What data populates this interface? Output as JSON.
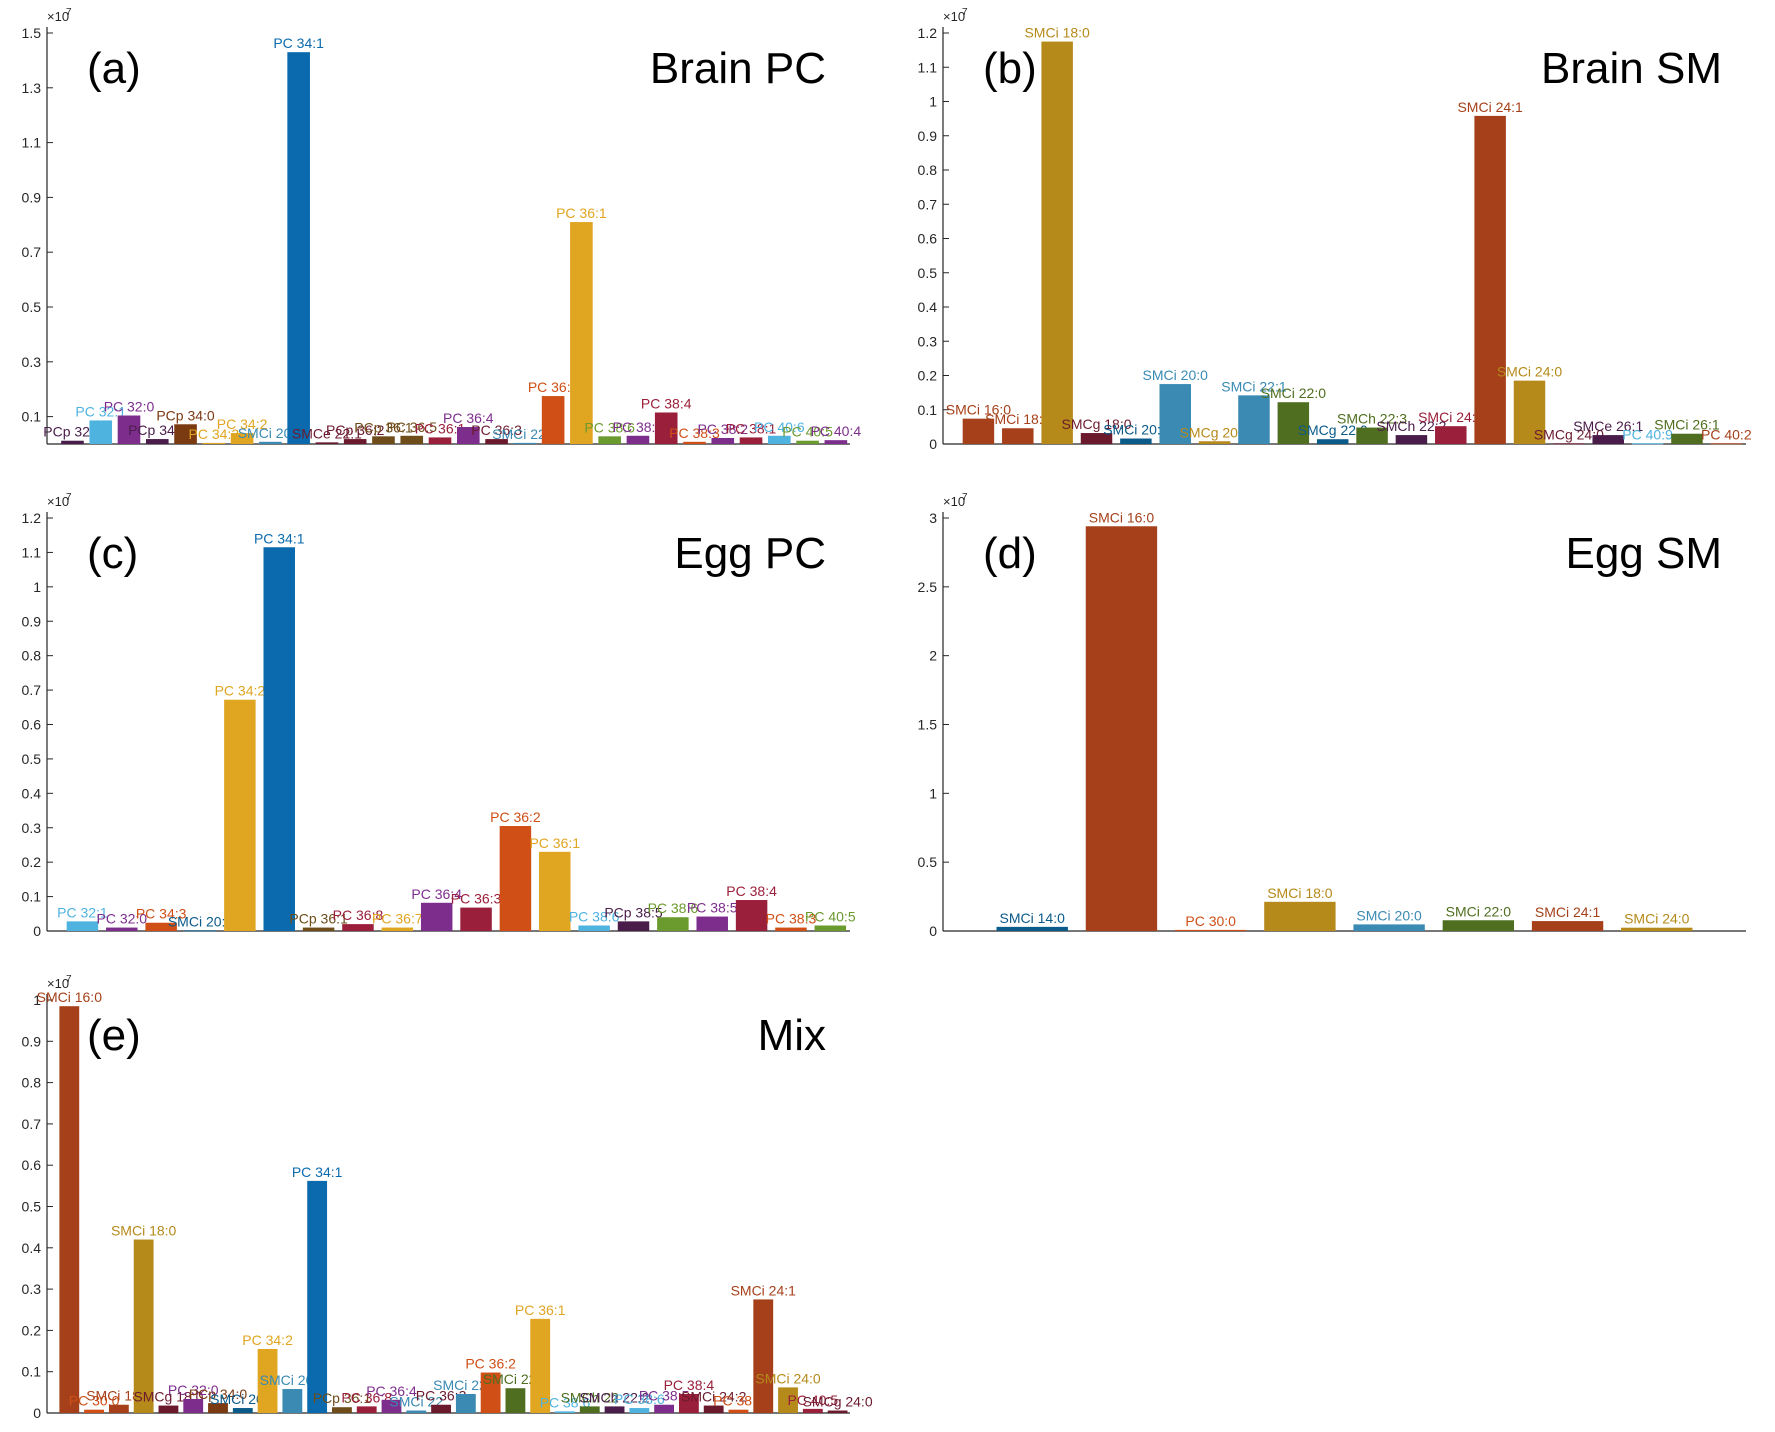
{
  "colors": {
    "dark_purple": "#4a1c4a",
    "light_blue": "#4fb3e0",
    "purple": "#7d2e8d",
    "brown": "#7a3a12",
    "orange_yellow": "#e0a521",
    "blue": "#0a6aad",
    "maroon": "#6b1a2e",
    "olive_brown": "#6e4d1a",
    "crimson": "#9a1f3a",
    "teal": "#3a8ab3",
    "orange_red": "#cf4f17",
    "green": "#6b9a2e",
    "rust": "#a5401a",
    "gold": "#b58a1a",
    "dark_green": "#4f6e1f",
    "navy": "#0a5a8a"
  },
  "chart_data": [
    {
      "type": "bar",
      "panel_label": "(a)",
      "title": "Brain PC",
      "exponent_base": "×10",
      "exponent": "7",
      "ylim": [
        0,
        1.5
      ],
      "yticks": [
        0.1,
        0.3,
        0.5,
        0.7,
        0.9,
        1.1,
        1.3,
        1.5
      ],
      "categories": [
        "PCp 32:0",
        "PC 32:1",
        "PC 32:0",
        "PCp 34:1",
        "PCp 34:0",
        "PC 34:3",
        "PC 34:2",
        "SMCi 20:1",
        "PC 34:1",
        "SMCe 22:1",
        "PCp 36:2",
        "PCp 36:1",
        "PC 36:5",
        "PC 36:1",
        "PC 36:4",
        "PC 36:3",
        "SMCi 22:1",
        "PC 36:2",
        "PC 36:1",
        "PC 38:6",
        "PC 38:5",
        "PC 38:4",
        "PC 38:3",
        "PC 38:2",
        "PC 38:1",
        "PC 40:6",
        "PC 40:5",
        "PC 40:4"
      ],
      "labels": [
        "PCp 32:0",
        "PC 32:1",
        "PC 32:0",
        "PCp 34:1",
        "PCp 34:0",
        "PC 34:3",
        "PC 34:2",
        "SMCi 20:1",
        "PC 34:1",
        "SMCe 22:1",
        "PCp 36:2",
        "PCp 36:1",
        "PC 36:5",
        "PC 36:1",
        "PC 36:4",
        "PC 36:3",
        "SMCi 22:1",
        "PC 36:2",
        "PC 36:1",
        "PC 38:6",
        "PC 38:5",
        "PC 38:4",
        "PC 38:3",
        "PC 38:2",
        "PC 38:1",
        "PC 40:6",
        "PC 40:5",
        "PC 40:4"
      ],
      "values": [
        0.012,
        0.086,
        0.104,
        0.018,
        0.072,
        0.004,
        0.04,
        0.008,
        1.43,
        0.006,
        0.018,
        0.028,
        0.03,
        0.024,
        0.062,
        0.018,
        0.004,
        0.175,
        0.81,
        0.028,
        0.03,
        0.115,
        0.008,
        0.022,
        0.024,
        0.03,
        0.012,
        0.014
      ],
      "color_keys": [
        "dark_purple",
        "light_blue",
        "purple",
        "dark_purple",
        "brown",
        "orange_yellow",
        "orange_yellow",
        "teal",
        "blue",
        "maroon",
        "maroon",
        "olive_brown",
        "olive_brown",
        "crimson",
        "purple",
        "maroon",
        "teal",
        "orange_red",
        "orange_yellow",
        "green",
        "purple",
        "crimson",
        "orange_red",
        "purple",
        "crimson",
        "light_blue",
        "green",
        "purple"
      ]
    },
    {
      "type": "bar",
      "panel_label": "(b)",
      "title": "Brain SM",
      "exponent_base": "×10",
      "exponent": "7",
      "ylim": [
        0,
        1.2
      ],
      "yticks": [
        0,
        0.1,
        0.2,
        0.3,
        0.4,
        0.5,
        0.6,
        0.7,
        0.8,
        0.9,
        1,
        1.1,
        1.2
      ],
      "categories": [
        "SMCi 16:0",
        "SMCi 18:1",
        "SMCi 18:0",
        "SMCg 18:0",
        "SMCi 20:1",
        "SMCi 20:0",
        "SMCg 20:0",
        "SMCi 22:1",
        "SMCi 22:0",
        "SMCg 22:0",
        "SMCh 22:3",
        "SMCh 22:2",
        "SMCi 24:2",
        "SMCi 24:1",
        "SMCi 24:0",
        "SMCg 24:0",
        "SMCe 26:1",
        "PC 40:9",
        "SMCi 26:1",
        "PC 40:2"
      ],
      "labels": [
        "SMCi 16:0",
        "SMCi 18:1",
        "SMCi 18:0",
        "SMCg 18:0",
        "SMCi 20:1",
        "SMCi 20:0",
        "SMCg 20:0",
        "SMCi 22:1",
        "SMCi 22:0",
        "SMCg 22:0",
        "SMCh 22:3",
        "SMCh 22:2",
        "SMCi 24:2",
        "SMCi 24:1",
        "SMCi 24:0",
        "SMCg 24:0",
        "SMCe 26:1",
        "PC 40:9",
        "SMCi 26:1",
        "PC 40:2"
      ],
      "values": [
        0.074,
        0.046,
        1.175,
        0.032,
        0.016,
        0.175,
        0.008,
        0.142,
        0.122,
        0.014,
        0.048,
        0.026,
        0.052,
        0.958,
        0.185,
        0.002,
        0.026,
        0.002,
        0.03,
        0.002
      ],
      "color_keys": [
        "rust",
        "rust",
        "gold",
        "maroon",
        "navy",
        "teal",
        "gold",
        "teal",
        "dark_green",
        "navy",
        "dark_green",
        "dark_purple",
        "crimson",
        "rust",
        "gold",
        "maroon",
        "dark_purple",
        "light_blue",
        "dark_green",
        "rust"
      ]
    },
    {
      "type": "bar",
      "panel_label": "(c)",
      "title": "Egg PC",
      "exponent_base": "×10",
      "exponent": "7",
      "ylim": [
        0,
        1.2
      ],
      "yticks": [
        0,
        0.1,
        0.2,
        0.3,
        0.4,
        0.5,
        0.6,
        0.7,
        0.8,
        0.9,
        1,
        1.1,
        1.2
      ],
      "categories": [
        "PC 32:1",
        "PC 32:0",
        "PC 34:3",
        "SMCi 20:1",
        "PC 34:2",
        "PC 34:1",
        "PCp 36:1",
        "PC 36:8",
        "PC 36:7",
        "PC 36:4",
        "PC 36:3",
        "PC 36:2",
        "PC 36:1",
        "PC 38:6",
        "PCp 38:5",
        "PC 38:6",
        "PC 38:5",
        "PC 38:4",
        "PC 38:3",
        "PC 40:5"
      ],
      "labels": [
        "PC 32:1",
        "PC 32:0",
        "PC 34:3",
        "SMCi 20:1",
        "PC 34:2",
        "PC 34:1",
        "PCp 36:1",
        "PC 36:8",
        "PC 36:7",
        "PC 36:4",
        "PC 36:3",
        "PC 36:2",
        "PC 36:1",
        "PC 38:6",
        "PCp 38:5",
        "PC 38:6",
        "PC 38:5",
        "PC 38:4",
        "PC 38:3",
        "PC 40:5"
      ],
      "values": [
        0.028,
        0.01,
        0.024,
        0.002,
        0.672,
        1.115,
        0.01,
        0.02,
        0.01,
        0.082,
        0.068,
        0.305,
        0.23,
        0.016,
        0.028,
        0.04,
        0.042,
        0.09,
        0.01,
        0.016
      ],
      "color_keys": [
        "light_blue",
        "purple",
        "orange_red",
        "navy",
        "orange_yellow",
        "blue",
        "olive_brown",
        "crimson",
        "orange_yellow",
        "purple",
        "crimson",
        "orange_red",
        "orange_yellow",
        "light_blue",
        "dark_purple",
        "green",
        "purple",
        "crimson",
        "orange_red",
        "green"
      ]
    },
    {
      "type": "bar",
      "panel_label": "(d)",
      "title": "Egg SM",
      "exponent_base": "×10",
      "exponent": "7",
      "ylim": [
        0,
        3
      ],
      "yticks": [
        0,
        0.5,
        1,
        1.5,
        2,
        2.5,
        3
      ],
      "categories": [
        "SMCi 14:0",
        "SMCi 16:0",
        "PC 30:0",
        "SMCi 18:0",
        "SMCi 20:0",
        "SMCi 22:0",
        "SMCi 24:1",
        "SMCi 24:0"
      ],
      "labels": [
        "SMCi 14:0",
        "SMCi 16:0",
        "PC 30:0",
        "SMCi 18:0",
        "SMCi 20:0",
        "SMCi 22:0",
        "SMCi 24:1",
        "SMCi 24:0"
      ],
      "values": [
        0.03,
        2.94,
        0.008,
        0.212,
        0.048,
        0.078,
        0.072,
        0.024
      ],
      "color_keys": [
        "navy",
        "rust",
        "orange_red",
        "gold",
        "teal",
        "dark_green",
        "rust",
        "gold"
      ]
    },
    {
      "type": "bar",
      "panel_label": "(e)",
      "title": "Mix",
      "exponent_base": "×10",
      "exponent": "7",
      "ylim": [
        0,
        1
      ],
      "yticks": [
        0,
        0.1,
        0.2,
        0.3,
        0.4,
        0.5,
        0.6,
        0.7,
        0.8,
        0.9,
        1
      ],
      "categories": [
        "SMCi 16:0",
        "PC 30:0",
        "SMCi 18:1",
        "SMCi 18:0",
        "SMCg 18:0",
        "PC 32:0",
        "PCp 34:0",
        "SMCi 20:1",
        "PC 34:2",
        "SMCi 20:0",
        "PC 34:1",
        "PCp 36:1",
        "PC 36:8",
        "PC 36:4",
        "SMCi 22",
        "PC 36:3",
        "SMCi 22:1",
        "PC 36:2",
        "SMCi 22:0",
        "PC 36:1",
        "PC 38:6",
        "SMCh 22",
        "SMCh 22:2",
        "PC 38:6",
        "PC 38:5",
        "PC 38:4",
        "SMCi 24:2",
        "PC 38:3",
        "SMCi 24:1",
        "SMCi 24:0",
        "PC 40:5",
        "SMCg 24:0"
      ],
      "labels": [
        "SMCi 16:0",
        "PC 30:0",
        "SMCi 18:1",
        "SMCi 18:0",
        "SMCg 18:0",
        "PC 32:0",
        "PCp 34:0",
        "SMCi 20:1",
        "PC 34:2",
        "SMCi 20:0",
        "PC 34:1",
        "PCp 36:1",
        "PC 36:8",
        "PC 36:4",
        "SMCi 22",
        "PC 36:3",
        "SMCi 22:1",
        "PC 36:2",
        "SMCi 22:0",
        "PC 36:1",
        "PC 38:6",
        "SMCh 22",
        "SMCh 22:2",
        "PC 38:6",
        "PC 38:5",
        "PC 38:4",
        "SMCi 24:2",
        "PC 38:3",
        "SMCi 24:1",
        "SMCi 24:0",
        "PC 40:5",
        "SMCg 24:0"
      ],
      "values": [
        0.985,
        0.008,
        0.02,
        0.42,
        0.018,
        0.034,
        0.024,
        0.012,
        0.155,
        0.058,
        0.562,
        0.014,
        0.016,
        0.032,
        0.006,
        0.02,
        0.046,
        0.098,
        0.06,
        0.228,
        0.004,
        0.016,
        0.016,
        0.012,
        0.02,
        0.046,
        0.018,
        0.008,
        0.275,
        0.062,
        0.01,
        0.006
      ],
      "color_keys": [
        "rust",
        "orange_red",
        "rust",
        "gold",
        "maroon",
        "purple",
        "brown",
        "navy",
        "orange_yellow",
        "teal",
        "blue",
        "olive_brown",
        "crimson",
        "purple",
        "teal",
        "maroon",
        "teal",
        "orange_red",
        "dark_green",
        "orange_yellow",
        "light_blue",
        "dark_green",
        "dark_purple",
        "light_blue",
        "purple",
        "crimson",
        "maroon",
        "orange_red",
        "rust",
        "gold",
        "crimson",
        "maroon"
      ]
    }
  ]
}
